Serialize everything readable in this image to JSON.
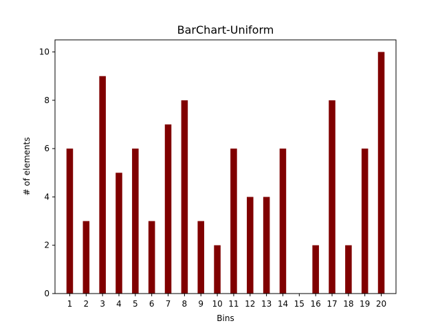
{
  "chart_data": {
    "type": "bar",
    "title": "BarChart-Uniform",
    "xlabel": "Bins",
    "ylabel": "# of elements",
    "categories": [
      "1",
      "2",
      "3",
      "4",
      "5",
      "6",
      "7",
      "8",
      "9",
      "10",
      "11",
      "12",
      "13",
      "14",
      "15",
      "16",
      "17",
      "18",
      "19",
      "20"
    ],
    "values": [
      6,
      3,
      9,
      5,
      6,
      3,
      7,
      8,
      3,
      2,
      6,
      4,
      4,
      6,
      0,
      2,
      8,
      2,
      6,
      10
    ],
    "ylim": [
      0,
      10.5
    ],
    "yticks": [
      0,
      2,
      4,
      6,
      8,
      10
    ],
    "bar_color": "#800000",
    "grid": false,
    "legend": "none"
  }
}
